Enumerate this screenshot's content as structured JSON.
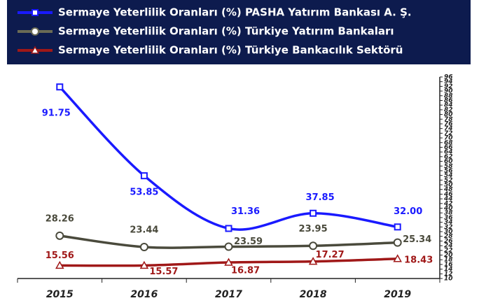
{
  "chart_data": {
    "type": "line",
    "categories": [
      "2015",
      "2016",
      "2017",
      "2018",
      "2019"
    ],
    "series": [
      {
        "name": "Sermaye Yeterlilik Oranları (%) PASHA Yatırım Bankası A. Ş.",
        "color": "#1a1aff",
        "marker": "square",
        "values": [
          91.75,
          53.85,
          31.36,
          37.85,
          32
        ],
        "value_labels": [
          "91.75",
          "53.85",
          "31.36",
          "37.85",
          "32.00"
        ]
      },
      {
        "name": "Sermaye Yeterlilik Oranları (%) Türkiye Yatırım Bankaları",
        "color": "#4a4a3c",
        "marker": "circle",
        "values": [
          28.26,
          23.44,
          23.59,
          23.95,
          25.34
        ],
        "value_labels": [
          "28.26",
          "23.44",
          "23.59",
          "23.95",
          "25.34"
        ]
      },
      {
        "name": "Sermaye Yeterlilik Oranları (%) Türkiye Bankacılık Sektörü",
        "color": "#a01818",
        "marker": "triangle",
        "values": [
          15.56,
          15.57,
          16.87,
          17.27,
          18.43
        ],
        "value_labels": [
          "15.56",
          "15.57",
          "16.87",
          "17.27",
          "18.43"
        ]
      }
    ],
    "ylim": [
      10,
      96
    ],
    "yticks": [
      10,
      12,
      14,
      16,
      18,
      20,
      22,
      24,
      26,
      28,
      30,
      32,
      34,
      36,
      38,
      40,
      42,
      44,
      46,
      48,
      50,
      52,
      54,
      56,
      58,
      60,
      62,
      64,
      66,
      68,
      70,
      72,
      74,
      76,
      78,
      80,
      82,
      84,
      86,
      88,
      90,
      92,
      94,
      96
    ],
    "legend": "top"
  }
}
